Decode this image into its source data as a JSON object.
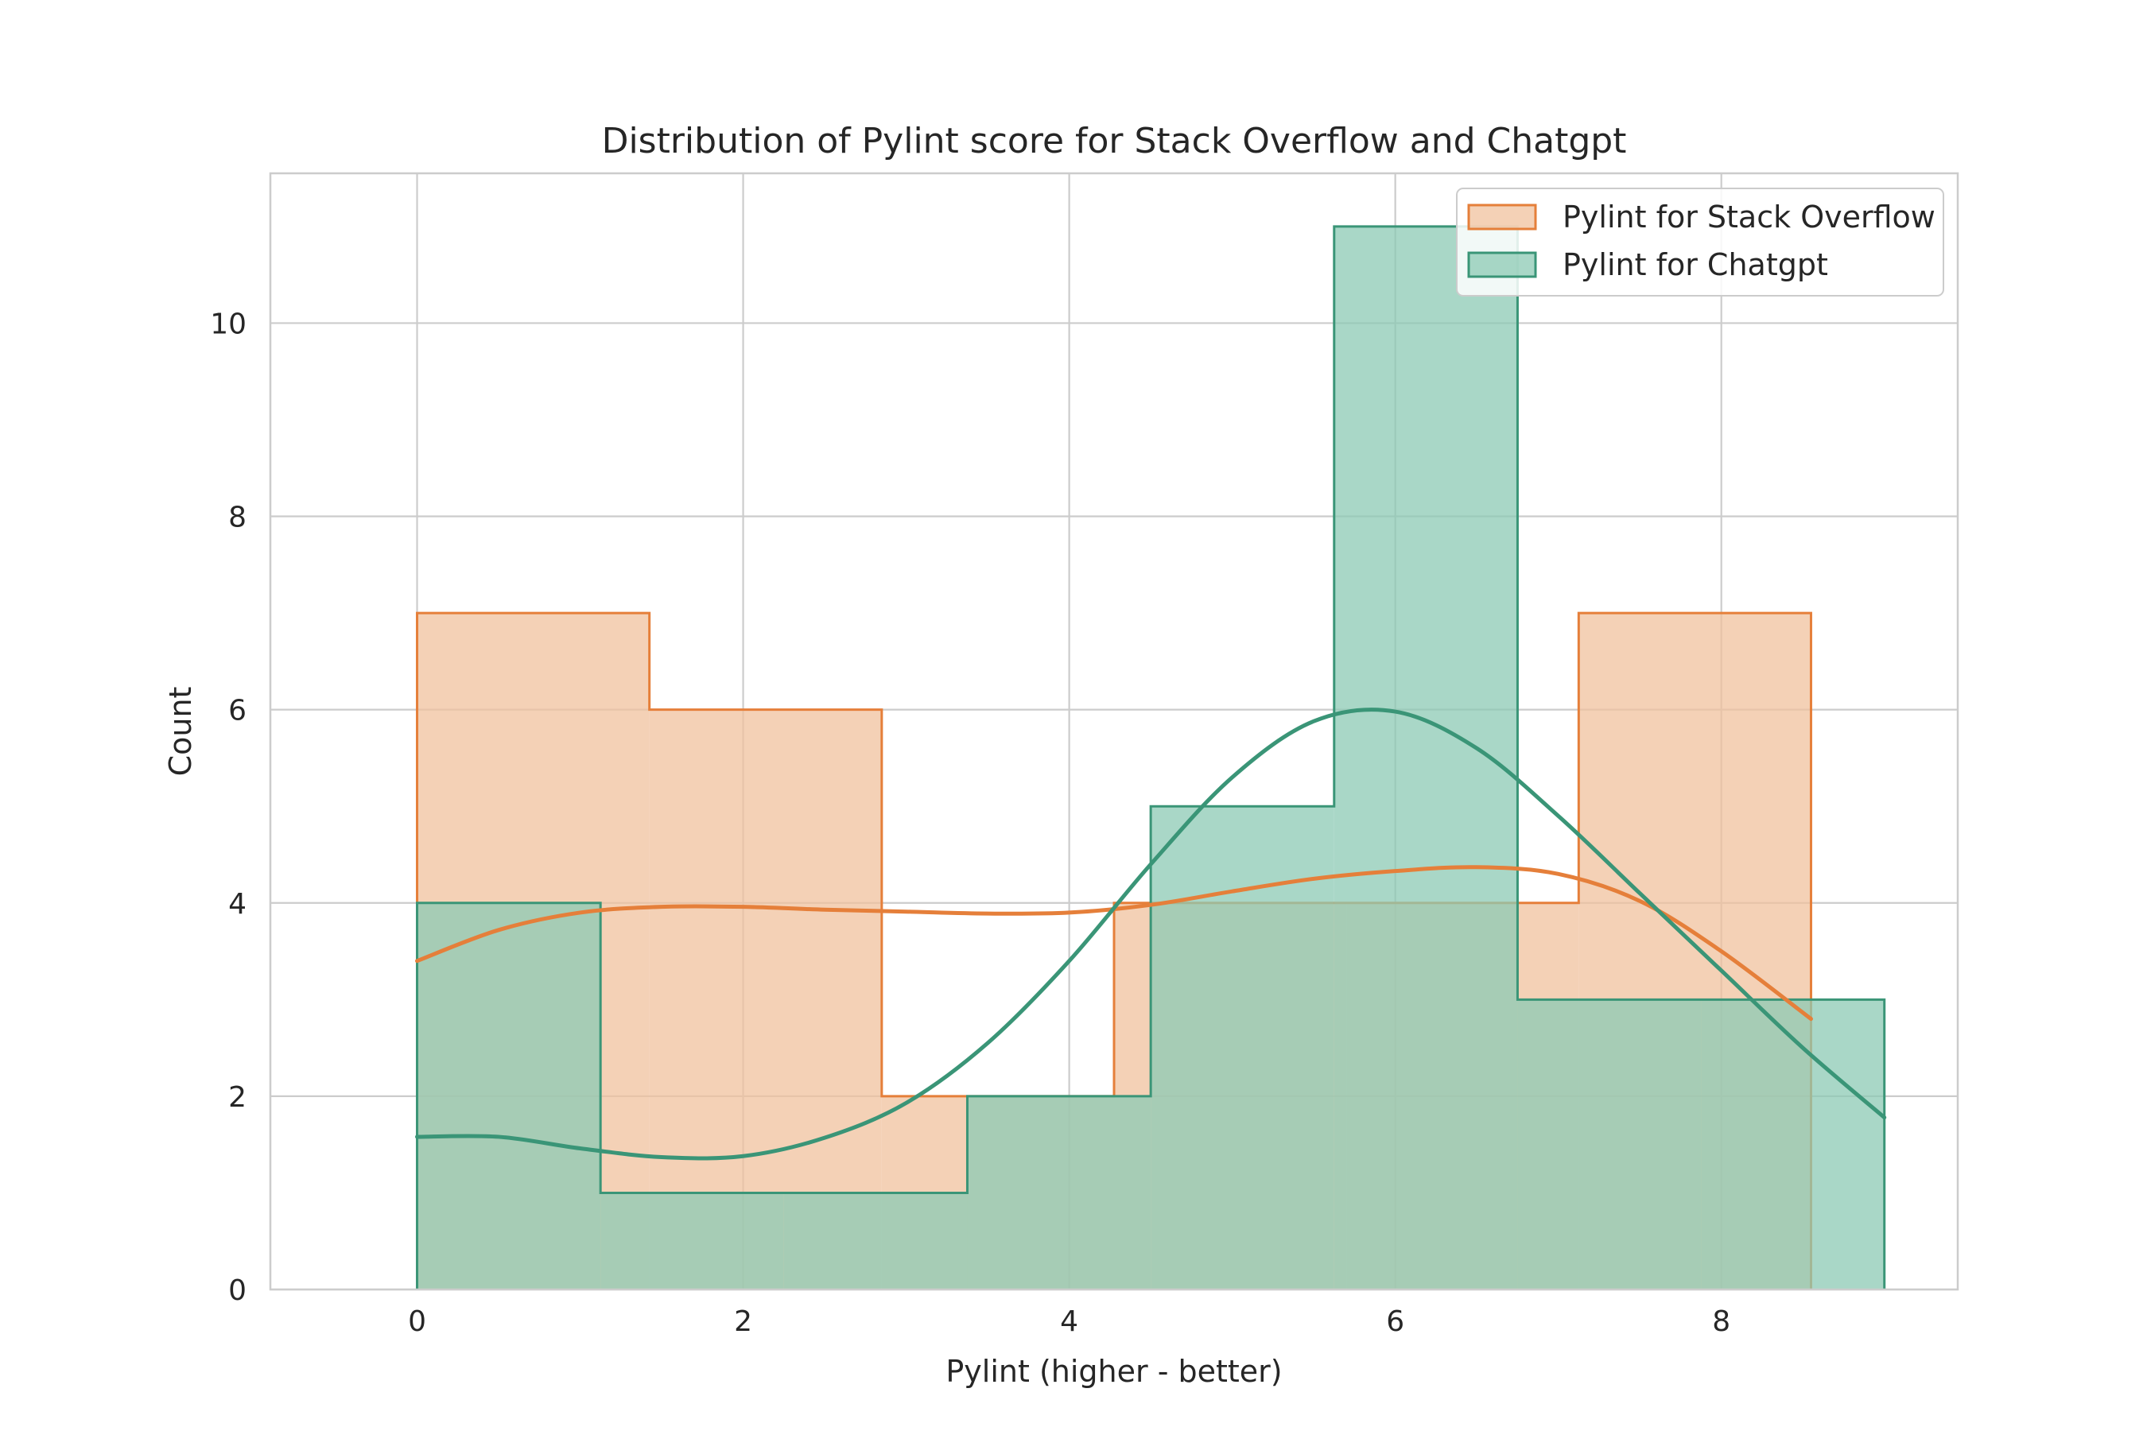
{
  "chart_data": {
    "type": "histogram",
    "title": "Distribution of Pylint score for Stack Overflow and Chatgpt",
    "xlabel": "Pylint (higher - better)",
    "ylabel": "Count",
    "xlim": [
      -0.9,
      9.45
    ],
    "ylim": [
      0,
      11.55
    ],
    "xticks": [
      0,
      2,
      4,
      6,
      8
    ],
    "yticks": [
      0,
      2,
      4,
      6,
      8,
      10
    ],
    "grid": true,
    "legend_position": "top-right",
    "series": [
      {
        "name": "Pylint for Stack Overflow",
        "color": "#e57f3a",
        "fill": "#f0c19d",
        "bin_edges": [
          0,
          1.425,
          2.85,
          4.275,
          5.7,
          7.125,
          8.55
        ],
        "counts": [
          7,
          6,
          2,
          4,
          4,
          7
        ],
        "kde": {
          "x": [
            0,
            0.5,
            1,
            1.5,
            2,
            2.5,
            3,
            3.5,
            4,
            4.5,
            5,
            5.5,
            6,
            6.5,
            7,
            7.5,
            8,
            8.55
          ],
          "y": [
            3.4,
            3.72,
            3.9,
            3.96,
            3.96,
            3.93,
            3.91,
            3.89,
            3.9,
            3.98,
            4.12,
            4.25,
            4.33,
            4.37,
            4.3,
            4.02,
            3.5,
            2.8
          ]
        }
      },
      {
        "name": "Pylint for Chatgpt",
        "color": "#3a9577",
        "fill": "#8ccab4",
        "bin_edges": [
          0,
          1.125,
          2.25,
          3.375,
          4.5,
          5.625,
          6.75,
          7.875,
          9
        ],
        "counts": [
          4,
          1,
          1,
          2,
          5,
          11,
          3,
          3
        ],
        "kde": {
          "x": [
            0,
            0.5,
            1,
            1.5,
            2,
            2.5,
            3,
            3.5,
            4,
            4.5,
            5,
            5.5,
            6,
            6.5,
            7,
            7.5,
            8,
            8.5,
            9
          ],
          "y": [
            1.58,
            1.58,
            1.46,
            1.37,
            1.38,
            1.57,
            1.93,
            2.55,
            3.4,
            4.4,
            5.3,
            5.88,
            5.98,
            5.6,
            4.9,
            4.1,
            3.3,
            2.5,
            1.78
          ]
        }
      }
    ]
  }
}
